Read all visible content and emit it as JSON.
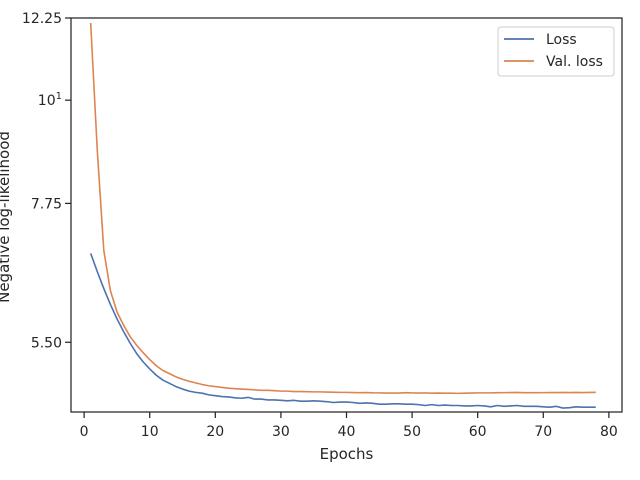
{
  "chart_data": {
    "type": "line",
    "xlabel": "Epochs",
    "ylabel": "Negative log-likelihood",
    "yscale": "log",
    "xlim": [
      -2,
      82
    ],
    "ylim": [
      4.63,
      12.25
    ],
    "xticks": [
      0,
      10,
      20,
      30,
      40,
      50,
      60,
      70,
      80
    ],
    "xtick_labels": [
      "0",
      "10",
      "20",
      "30",
      "40",
      "50",
      "60",
      "70",
      "80"
    ],
    "yticks": [
      5.5,
      7.75,
      10,
      12.25
    ],
    "ytick_labels": [
      "5.50",
      "7.75",
      "10",
      "12.25"
    ],
    "ytick_sup": [
      "",
      "",
      "1",
      ""
    ],
    "grid": false,
    "legend": "top-right",
    "x": [
      1,
      2,
      3,
      4,
      5,
      6,
      7,
      8,
      9,
      10,
      11,
      12,
      13,
      14,
      15,
      16,
      17,
      18,
      19,
      20,
      21,
      22,
      23,
      24,
      25,
      26,
      27,
      28,
      29,
      30,
      31,
      32,
      33,
      34,
      35,
      36,
      37,
      38,
      39,
      40,
      41,
      42,
      43,
      44,
      45,
      46,
      47,
      48,
      49,
      50,
      51,
      52,
      53,
      54,
      55,
      56,
      57,
      58,
      59,
      60,
      61,
      62,
      63,
      64,
      65,
      66,
      67,
      68,
      69,
      70,
      71,
      72,
      73,
      74,
      75,
      76,
      77,
      78
    ],
    "series": [
      {
        "name": "Loss",
        "color": "#4c72b0",
        "values": [
          6.85,
          6.55,
          6.28,
          6.04,
          5.83,
          5.65,
          5.49,
          5.35,
          5.24,
          5.15,
          5.07,
          5.01,
          4.97,
          4.93,
          4.9,
          4.875,
          4.86,
          4.85,
          4.83,
          4.82,
          4.81,
          4.805,
          4.795,
          4.79,
          4.8,
          4.78,
          4.78,
          4.77,
          4.77,
          4.765,
          4.76,
          4.765,
          4.755,
          4.755,
          4.76,
          4.755,
          4.75,
          4.74,
          4.745,
          4.745,
          4.74,
          4.73,
          4.735,
          4.73,
          4.72,
          4.72,
          4.725,
          4.725,
          4.72,
          4.72,
          4.715,
          4.705,
          4.715,
          4.705,
          4.71,
          4.705,
          4.705,
          4.7,
          4.7,
          4.705,
          4.7,
          4.69,
          4.705,
          4.695,
          4.7,
          4.705,
          4.695,
          4.695,
          4.695,
          4.69,
          4.685,
          4.695,
          4.675,
          4.68,
          4.69,
          4.685,
          4.685,
          4.685
        ]
      },
      {
        "name": "Val. loss",
        "color": "#dd8452",
        "values": [
          12.1,
          8.85,
          6.9,
          6.25,
          5.93,
          5.74,
          5.58,
          5.46,
          5.36,
          5.27,
          5.19,
          5.13,
          5.09,
          5.05,
          5.02,
          4.995,
          4.975,
          4.955,
          4.94,
          4.93,
          4.92,
          4.91,
          4.905,
          4.9,
          4.895,
          4.89,
          4.885,
          4.885,
          4.88,
          4.875,
          4.875,
          4.87,
          4.87,
          4.868,
          4.866,
          4.866,
          4.864,
          4.862,
          4.86,
          4.86,
          4.858,
          4.856,
          4.858,
          4.855,
          4.854,
          4.852,
          4.852,
          4.852,
          4.856,
          4.854,
          4.852,
          4.854,
          4.85,
          4.852,
          4.85,
          4.85,
          4.848,
          4.85,
          4.852,
          4.854,
          4.854,
          4.854,
          4.856,
          4.857,
          4.858,
          4.859,
          4.856,
          4.857,
          4.856,
          4.857,
          4.858,
          4.858,
          4.859,
          4.858,
          4.859,
          4.858,
          4.859,
          4.861
        ]
      }
    ]
  }
}
